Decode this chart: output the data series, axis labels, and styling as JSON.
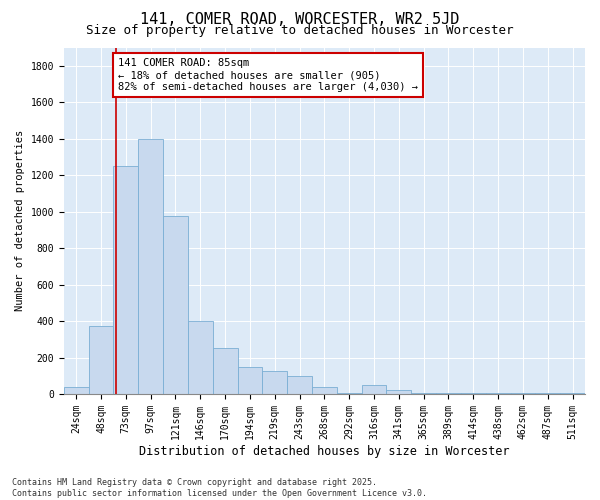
{
  "title": "141, COMER ROAD, WORCESTER, WR2 5JD",
  "subtitle": "Size of property relative to detached houses in Worcester",
  "xlabel": "Distribution of detached houses by size in Worcester",
  "ylabel": "Number of detached properties",
  "categories": [
    "24sqm",
    "48sqm",
    "73sqm",
    "97sqm",
    "121sqm",
    "146sqm",
    "170sqm",
    "194sqm",
    "219sqm",
    "243sqm",
    "268sqm",
    "292sqm",
    "316sqm",
    "341sqm",
    "365sqm",
    "389sqm",
    "414sqm",
    "438sqm",
    "462sqm",
    "487sqm",
    "511sqm"
  ],
  "values": [
    40,
    375,
    1250,
    1400,
    975,
    400,
    250,
    150,
    125,
    100,
    40,
    5,
    50,
    20,
    5,
    5,
    5,
    5,
    5,
    5,
    5
  ],
  "bar_color": "#c8d9ee",
  "bar_edge_color": "#7aaed4",
  "vline_color": "#cc0000",
  "vline_x": 1.62,
  "annotation_text": "141 COMER ROAD: 85sqm\n← 18% of detached houses are smaller (905)\n82% of semi-detached houses are larger (4,030) →",
  "annotation_box_color": "#ffffff",
  "annotation_box_edge": "#cc0000",
  "ylim": [
    0,
    1900
  ],
  "yticks": [
    0,
    200,
    400,
    600,
    800,
    1000,
    1200,
    1400,
    1600,
    1800
  ],
  "bg_color": "#ddeaf7",
  "footnote": "Contains HM Land Registry data © Crown copyright and database right 2025.\nContains public sector information licensed under the Open Government Licence v3.0.",
  "title_fontsize": 11,
  "subtitle_fontsize": 9,
  "xlabel_fontsize": 8.5,
  "ylabel_fontsize": 7.5,
  "tick_fontsize": 7,
  "annotation_fontsize": 7.5,
  "footnote_fontsize": 6
}
